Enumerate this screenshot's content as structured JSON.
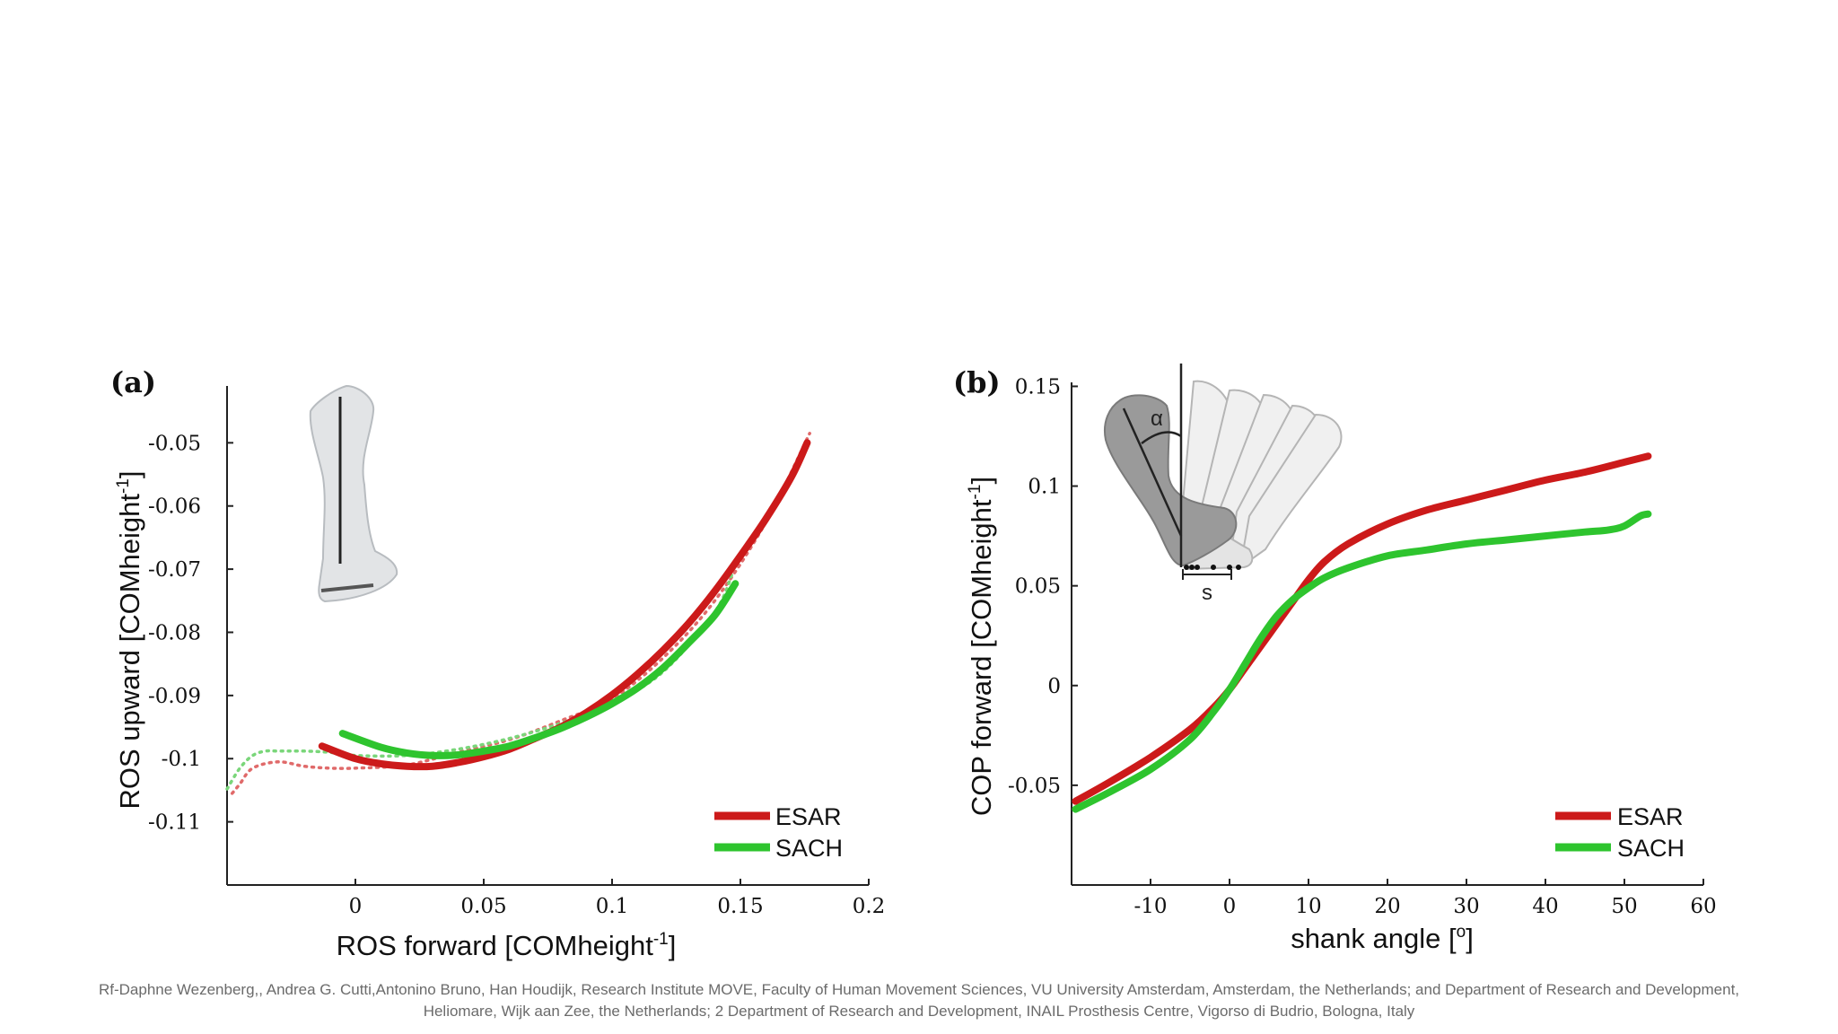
{
  "chart_data": [
    {
      "panel_label": "(a)",
      "type": "line",
      "xlabel": "ROS forward [COMheight",
      "xlabel_sup": "-1",
      "xlabel_end": "]",
      "ylabel": "ROS upward [COMheight",
      "ylabel_sup": "-1",
      "ylabel_end": "]",
      "xlim": [
        -0.05,
        0.2
      ],
      "ylim": [
        -0.12,
        -0.041
      ],
      "xticks": [
        0,
        0.05,
        0.1,
        0.15,
        0.2
      ],
      "xtick_labels": [
        "0",
        "0.05",
        "0.1",
        "0.15",
        "0.2"
      ],
      "yticks": [
        -0.05,
        -0.06,
        -0.07,
        -0.08,
        -0.09,
        -0.1,
        -0.11
      ],
      "ytick_labels": [
        "-0.05",
        "-0.06",
        "-0.07",
        "-0.08",
        "-0.09",
        "-0.1",
        "-0.11"
      ],
      "legend": [
        "ESAR",
        "SACH"
      ],
      "legend_position": "bottom-right",
      "series": [
        {
          "name": "ESAR",
          "color": "#cc1a1a",
          "style": "solid",
          "x": [
            -0.013,
            0.0,
            0.01,
            0.02,
            0.03,
            0.04,
            0.05,
            0.06,
            0.07,
            0.08,
            0.09,
            0.1,
            0.11,
            0.12,
            0.13,
            0.14,
            0.15,
            0.16,
            0.17,
            0.176
          ],
          "y": [
            -0.098,
            -0.1,
            -0.1008,
            -0.1012,
            -0.1012,
            -0.1006,
            -0.0997,
            -0.0985,
            -0.0968,
            -0.095,
            -0.0927,
            -0.0899,
            -0.0866,
            -0.0828,
            -0.0785,
            -0.0735,
            -0.0679,
            -0.062,
            -0.0553,
            -0.05
          ]
        },
        {
          "name": "SACH",
          "color": "#2ec42e",
          "style": "solid",
          "x": [
            -0.005,
            0.01,
            0.02,
            0.03,
            0.04,
            0.05,
            0.06,
            0.07,
            0.08,
            0.09,
            0.1,
            0.11,
            0.12,
            0.13,
            0.14,
            0.148
          ],
          "y": [
            -0.096,
            -0.0982,
            -0.0991,
            -0.0995,
            -0.0994,
            -0.0988,
            -0.098,
            -0.0967,
            -0.0952,
            -0.0934,
            -0.0913,
            -0.0888,
            -0.0856,
            -0.0816,
            -0.0773,
            -0.0723
          ]
        },
        {
          "name": "ESAR (dotted)",
          "color": "#e06a6a",
          "style": "dotted",
          "x": [
            -0.048,
            -0.045,
            -0.04,
            -0.03,
            -0.02,
            -0.01,
            0.0,
            0.02,
            0.04,
            0.06,
            0.08,
            0.1,
            0.12,
            0.14,
            0.16,
            0.177
          ],
          "y": [
            -0.1055,
            -0.104,
            -0.1015,
            -0.1005,
            -0.1012,
            -0.1015,
            -0.1015,
            -0.101,
            -0.099,
            -0.097,
            -0.094,
            -0.0905,
            -0.084,
            -0.075,
            -0.0625,
            -0.0485
          ]
        },
        {
          "name": "SACH (dotted)",
          "color": "#7ad67a",
          "style": "dotted",
          "x": [
            -0.05,
            -0.045,
            -0.04,
            -0.035,
            -0.03,
            -0.02,
            -0.01,
            0.0,
            0.02,
            0.04,
            0.06,
            0.08,
            0.1,
            0.12,
            0.14,
            0.147
          ],
          "y": [
            -0.1048,
            -0.1015,
            -0.0995,
            -0.0988,
            -0.0988,
            -0.0988,
            -0.099,
            -0.0995,
            -0.0995,
            -0.0985,
            -0.0968,
            -0.0944,
            -0.0912,
            -0.0862,
            -0.0768,
            -0.0705
          ]
        }
      ]
    },
    {
      "panel_label": "(b)",
      "type": "line",
      "xlabel": "shank angle [",
      "xlabel_sup": "o",
      "xlabel_end": "]",
      "ylabel": "COP forward [COMheight",
      "ylabel_sup": "-1",
      "ylabel_end": "]",
      "xlim": [
        -20,
        60
      ],
      "ylim": [
        -0.1,
        0.152
      ],
      "xticks": [
        -10,
        0,
        10,
        20,
        30,
        40,
        50,
        60
      ],
      "xtick_labels": [
        "-10",
        "0",
        "10",
        "20",
        "30",
        "40",
        "50",
        "60"
      ],
      "yticks": [
        0.15,
        0.1,
        0.05,
        0,
        -0.05
      ],
      "ytick_labels": [
        "0.15",
        "0.1",
        "0.05",
        "0",
        "-0.05"
      ],
      "legend": [
        "ESAR",
        "SACH"
      ],
      "legend_position": "bottom-right",
      "inset_labels": {
        "angle": "α",
        "distance": "s"
      },
      "series": [
        {
          "name": "ESAR",
          "color": "#cc1a1a",
          "style": "solid",
          "x": [
            -19.5,
            -15,
            -10,
            -5,
            -2,
            0,
            2,
            4,
            6,
            8,
            10,
            12,
            15,
            20,
            25,
            30,
            35,
            40,
            45,
            50,
            53
          ],
          "y": [
            -0.058,
            -0.048,
            -0.036,
            -0.022,
            -0.011,
            -0.002,
            0.009,
            0.02,
            0.031,
            0.042,
            0.053,
            0.062,
            0.071,
            0.081,
            0.088,
            0.093,
            0.098,
            0.103,
            0.107,
            0.112,
            0.115
          ]
        },
        {
          "name": "SACH",
          "color": "#2ec42e",
          "style": "solid",
          "x": [
            -19.5,
            -15,
            -10,
            -5,
            -2,
            0,
            2,
            4,
            6,
            8,
            10,
            12,
            15,
            20,
            25,
            30,
            35,
            40,
            45,
            48,
            50,
            52,
            53
          ],
          "y": [
            -0.062,
            -0.053,
            -0.042,
            -0.027,
            -0.013,
            -0.002,
            0.011,
            0.024,
            0.035,
            0.043,
            0.049,
            0.054,
            0.059,
            0.065,
            0.068,
            0.071,
            0.073,
            0.075,
            0.077,
            0.078,
            0.08,
            0.085,
            0.086
          ]
        }
      ]
    }
  ],
  "citation": {
    "line1": "Rf-Daphne Wezenberg,, Andrea G. Cutti,Antonino Bruno, Han Houdijk, Research Institute MOVE, Faculty of Human Movement Sciences, VU University Amsterdam, Amsterdam, the Netherlands; and Department of Research and Development,",
    "line2": "Heliomare, Wijk aan Zee, the Netherlands; 2 Department of Research and Development, INAIL Prosthesis Centre, Vigorso di Budrio, Bologna, Italy"
  }
}
